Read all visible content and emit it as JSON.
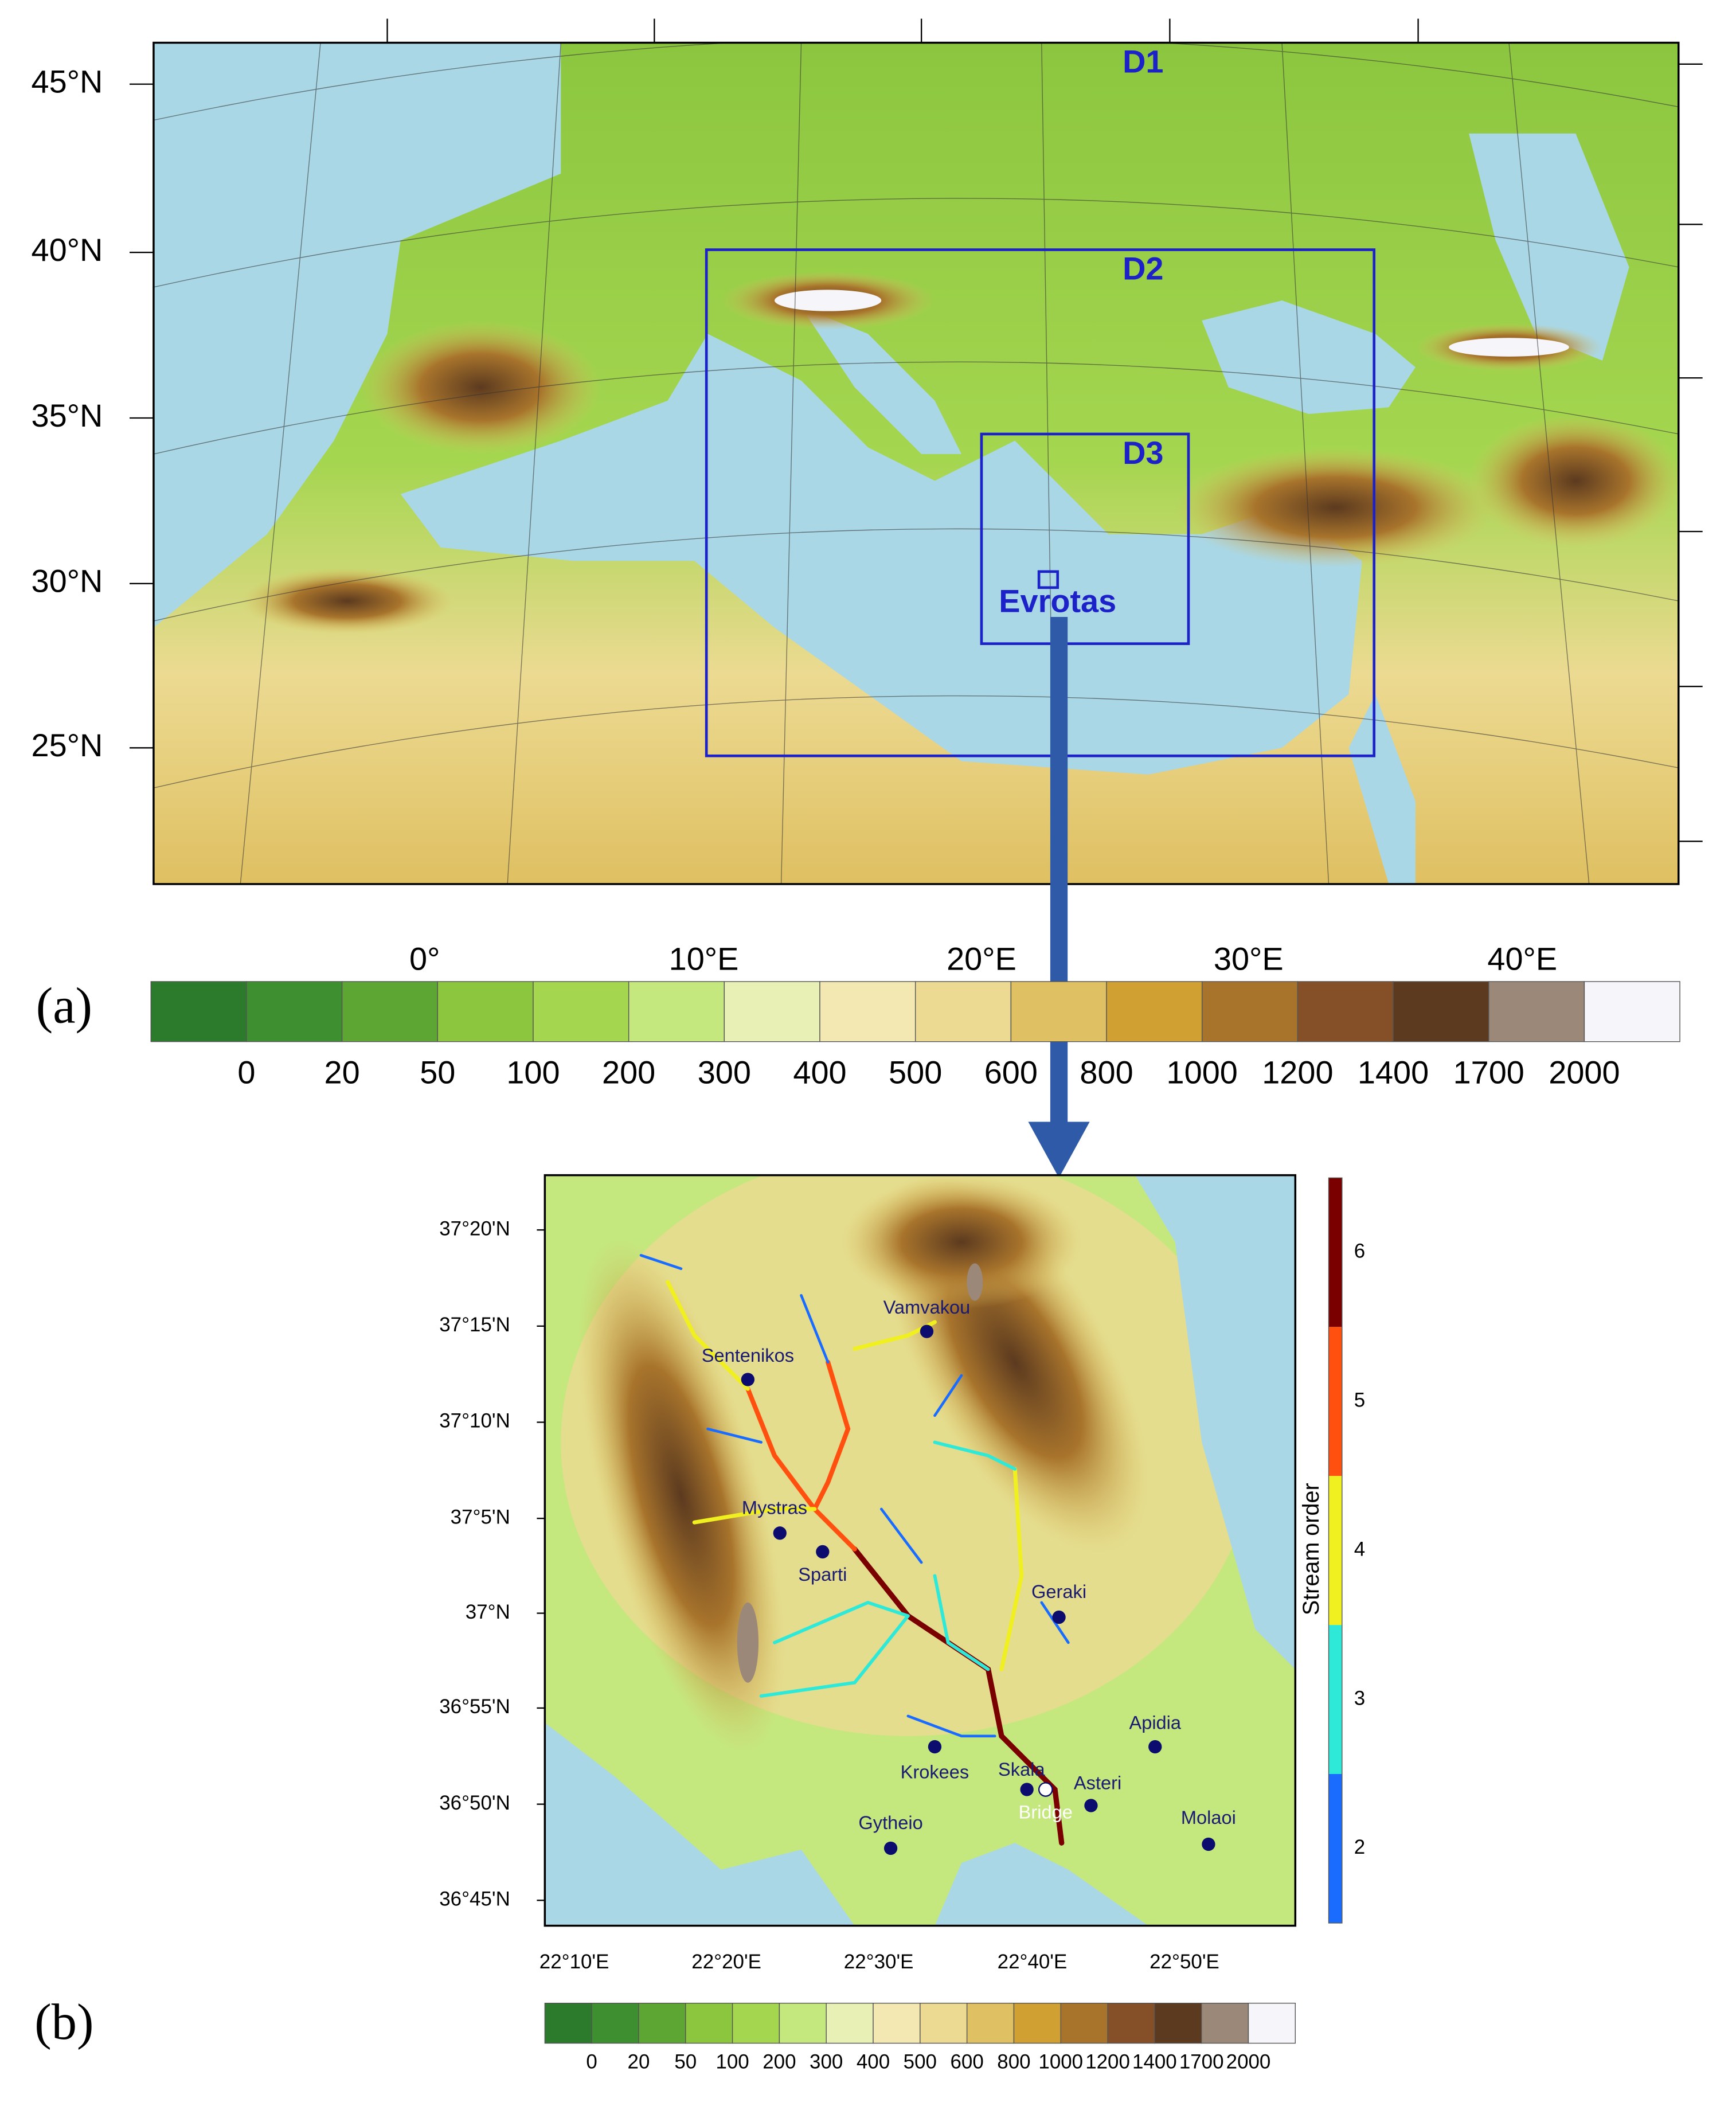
{
  "panel_a": {
    "label": "(a)",
    "domains": [
      "D1",
      "D2",
      "D3"
    ],
    "basin": "Evrotas",
    "lat_labels": [
      "45°N",
      "40°N",
      "35°N",
      "30°N",
      "25°N"
    ],
    "lon_labels": [
      "0°",
      "10°E",
      "20°E",
      "30°E",
      "40°E"
    ],
    "colorbar": {
      "levels": [
        0,
        20,
        50,
        100,
        200,
        300,
        400,
        500,
        600,
        800,
        1000,
        1200,
        1400,
        1700,
        2000
      ],
      "colors": [
        "#2c7a2c",
        "#3e8f30",
        "#5da634",
        "#8cc63f",
        "#a5d650",
        "#c4e87e",
        "#e8f0b6",
        "#f4e8b2",
        "#ecda92",
        "#dfc062",
        "#d0a033",
        "#a8742c",
        "#855028",
        "#5c3a1f",
        "#9b8878",
        "#f6f6fa"
      ]
    }
  },
  "panel_b": {
    "label": "(b)",
    "lat_labels": [
      "37°20'N",
      "37°15'N",
      "37°10'N",
      "37°5'N",
      "37°N",
      "36°55'N",
      "36°50'N",
      "36°45'N"
    ],
    "lon_labels": [
      "22°10'E",
      "22°20'E",
      "22°30'E",
      "22°40'E",
      "22°50'E"
    ],
    "colorbar": {
      "levels": [
        0,
        20,
        50,
        100,
        200,
        300,
        400,
        500,
        600,
        800,
        1000,
        1200,
        1400,
        1700,
        2000
      ],
      "colors": [
        "#2c7a2c",
        "#3e8f30",
        "#5da634",
        "#8cc63f",
        "#a5d650",
        "#c4e87e",
        "#e8f0b6",
        "#f4e8b2",
        "#ecda92",
        "#dfc062",
        "#d0a033",
        "#a8742c",
        "#855028",
        "#5c3a1f",
        "#9b8878",
        "#f6f6fa"
      ]
    },
    "stream_order": {
      "title": "Stream order",
      "orders": [
        2,
        3,
        4,
        5,
        6
      ],
      "colors": [
        "#1a6cff",
        "#2ee8d8",
        "#f0f020",
        "#ff5010",
        "#7a0000"
      ]
    },
    "places": [
      "Vamvakou",
      "Sentenikos",
      "Mystras",
      "Sparti",
      "Geraki",
      "Apidia",
      "Krokees",
      "Skala",
      "Asteri",
      "Bridge",
      "Gytheio",
      "Molaoi"
    ]
  }
}
